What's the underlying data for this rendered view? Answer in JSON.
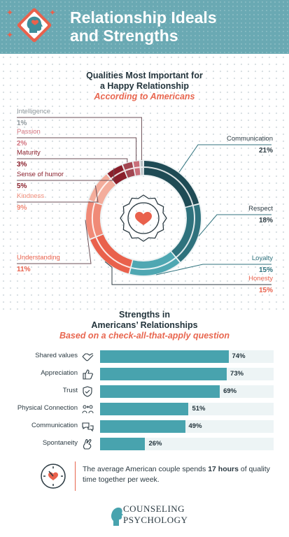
{
  "header": {
    "title_line1": "Relationship Ideals",
    "title_line2": "and Strengths"
  },
  "section1": {
    "title_line1": "Qualities Most Important for",
    "title_line2": "a Happy Relationship",
    "subtitle": "According to Americans"
  },
  "section2": {
    "title_line1": "Strengths in",
    "title_line2": "Americans’ Relationships",
    "subtitle": "Based on a check-all-that-apply question"
  },
  "chart_data": [
    {
      "type": "pie",
      "title": "Qualities Most Important for a Happy Relationship",
      "subtitle": "According to Americans",
      "unit": "%",
      "slices": [
        {
          "label": "Communication",
          "value": 21,
          "display": "21%",
          "color": "#1f4b55"
        },
        {
          "label": "Respect",
          "value": 18,
          "display": "18%",
          "color": "#2f727d"
        },
        {
          "label": "Loyalty",
          "value": 15,
          "display": "15%",
          "color": "#4fa7b2"
        },
        {
          "label": "Honesty",
          "value": 15,
          "display": "15%",
          "color": "#e9614c"
        },
        {
          "label": "Understanding",
          "value": 11,
          "display": "11%",
          "color": "#f08a77"
        },
        {
          "label": "Kindness",
          "value": 9,
          "display": "9%",
          "color": "#f3ad9c"
        },
        {
          "label": "Sense of humor",
          "value": 5,
          "display": "5%",
          "color": "#8a1f2b"
        },
        {
          "label": "Maturity",
          "value": 3,
          "display": "3%",
          "color": "#a24651"
        },
        {
          "label": "Passion",
          "value": 2,
          "display": "2%",
          "color": "#c96f7a"
        },
        {
          "label": "Intelligence",
          "value": 1,
          "display": "1%",
          "color": "#b9c1c5"
        }
      ]
    },
    {
      "type": "bar",
      "orientation": "horizontal",
      "title": "Strengths in Americans’ Relationships",
      "subtitle": "Based on a check-all-that-apply question",
      "unit": "%",
      "xlim": [
        0,
        100
      ],
      "categories": [
        "Shared values",
        "Appreciation",
        "Trust",
        "Physical Connection",
        "Communication",
        "Spontaneity"
      ],
      "values": [
        74,
        73,
        69,
        51,
        49,
        26
      ],
      "value_labels": [
        "74%",
        "73%",
        "69%",
        "51%",
        "49%",
        "26%"
      ],
      "icons": [
        "handshake-icon",
        "thumbs-up-icon",
        "shield-icon",
        "couple-icon",
        "chat-bubbles-icon",
        "cross-fingers-icon"
      ],
      "colors": {
        "bar": "#48a3ae",
        "track": "#edf4f5"
      }
    }
  ],
  "footer": {
    "text_before": "The average American couple spends ",
    "text_bold": "17 hours",
    "text_after": " of quality time together per week."
  },
  "logo": {
    "line1": "COUNSELING",
    "line2": "PSYCHOLOGY"
  },
  "colors": {
    "header": "#6aa9b3",
    "accent": "#e8664f",
    "teal": "#48a3ae"
  }
}
